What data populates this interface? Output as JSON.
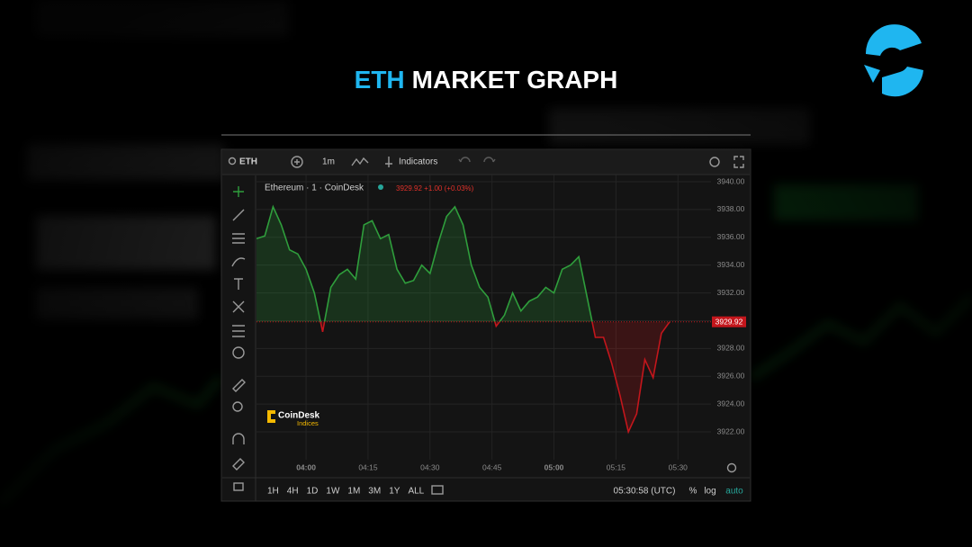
{
  "header": {
    "title_accent": "ETH",
    "title_rest": "MARKET GRAPH"
  },
  "toolbar": {
    "symbol": "ETH",
    "interval": "1m",
    "indicators": "Indicators"
  },
  "legend": {
    "name": "Ethereum · 1 · CoinDesk",
    "quote": "3929.92 +1.00 (+0.03%)"
  },
  "logo": {
    "brand": "CoinDesk",
    "sub": "Indices"
  },
  "footer": {
    "ranges": [
      "1H",
      "4H",
      "1D",
      "1W",
      "1M",
      "3M",
      "1Y",
      "ALL"
    ],
    "clock": "05:30:58 (UTC)",
    "percent": "%",
    "log": "log",
    "auto": "auto"
  },
  "chart_data": {
    "type": "line",
    "x": [
      "03:48",
      "03:50",
      "03:52",
      "03:54",
      "03:56",
      "03:58",
      "04:00",
      "04:02",
      "04:04",
      "04:06",
      "04:08",
      "04:10",
      "04:12",
      "04:14",
      "04:16",
      "04:18",
      "04:20",
      "04:22",
      "04:24",
      "04:26",
      "04:28",
      "04:30",
      "04:32",
      "04:34",
      "04:36",
      "04:38",
      "04:40",
      "04:42",
      "04:44",
      "04:46",
      "04:48",
      "04:50",
      "04:52",
      "04:54",
      "04:56",
      "04:58",
      "05:00",
      "05:02",
      "05:04",
      "05:06",
      "05:08",
      "05:10",
      "05:12",
      "05:14",
      "05:16",
      "05:18",
      "05:20",
      "05:22",
      "05:24",
      "05:26",
      "05:28"
    ],
    "series": [
      {
        "name": "Ethereum",
        "color": "#2f9e3c",
        "below_color": "#c4161c",
        "values": [
          3935.9,
          3936.1,
          3938.2,
          3936.9,
          3935.1,
          3934.8,
          3933.7,
          3932.0,
          3929.2,
          3932.4,
          3933.3,
          3933.7,
          3933.0,
          3936.9,
          3937.2,
          3935.9,
          3936.2,
          3933.7,
          3932.7,
          3932.9,
          3934.0,
          3933.4,
          3935.6,
          3937.5,
          3938.2,
          3936.9,
          3934.0,
          3932.4,
          3931.7,
          3929.6,
          3930.4,
          3932.0,
          3930.7,
          3931.4,
          3931.7,
          3932.4,
          3932.0,
          3933.7,
          3934.0,
          3934.6,
          3931.7,
          3928.8,
          3928.8,
          3926.9,
          3924.6,
          3922.0,
          3923.3,
          3927.2,
          3925.9,
          3929.1,
          3929.92
        ]
      }
    ],
    "last_price": 3929.92,
    "xlim": [
      "03:48",
      "05:38"
    ],
    "xticks": [
      "04:00",
      "04:15",
      "04:30",
      "04:45",
      "05:00",
      "05:15",
      "05:30"
    ],
    "ylim": [
      3920,
      3940.5
    ],
    "yticks": [
      {
        "value": 3922,
        "label": "3922.00"
      },
      {
        "value": 3924,
        "label": "3924.00"
      },
      {
        "value": 3926,
        "label": "3926.00"
      },
      {
        "value": 3928,
        "label": "3928.00"
      },
      {
        "value": 3930,
        "label": "3930.00"
      },
      {
        "value": 3932,
        "label": "3932.00"
      },
      {
        "value": 3934,
        "label": "3934.00"
      },
      {
        "value": 3936,
        "label": "3936.00"
      },
      {
        "value": 3938,
        "label": "3938.00"
      },
      {
        "value": 3940,
        "label": "3940.00"
      }
    ],
    "grid": true
  }
}
